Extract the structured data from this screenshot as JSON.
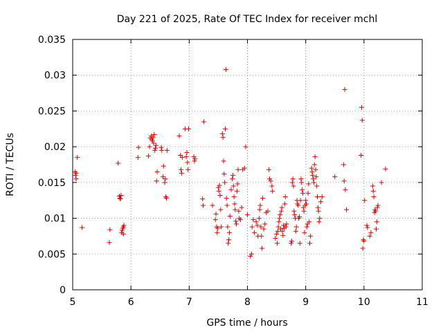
{
  "chart_data": {
    "type": "scatter",
    "title": "Day 221 of 2025, Rate Of TEC Index for receiver mchl",
    "xlabel": "GPS time / hours",
    "ylabel": "ROTI / TECUs",
    "xlim": [
      5,
      11
    ],
    "ylim": [
      0,
      0.035
    ],
    "xticks": [
      "5",
      "6",
      "7",
      "8",
      "9",
      "10",
      "11"
    ],
    "yticks": [
      "0",
      "0.005",
      "0.01",
      "0.015",
      "0.02",
      "0.025",
      "0.03",
      "0.035"
    ],
    "grid": true,
    "marker_color": "#e00000",
    "series": [
      {
        "marker": "plus",
        "points": [
          [
            5.04,
            0.0165
          ],
          [
            5.05,
            0.016
          ],
          [
            5.06,
            0.0163
          ],
          [
            5.06,
            0.0155
          ],
          [
            5.08,
            0.0185
          ],
          [
            5.16,
            0.0087
          ],
          [
            5.63,
            0.0066
          ],
          [
            5.64,
            0.0084
          ],
          [
            5.78,
            0.0177
          ],
          [
            5.8,
            0.0131
          ],
          [
            5.81,
            0.0128
          ],
          [
            5.82,
            0.0127
          ],
          [
            5.83,
            0.0132
          ],
          [
            5.84,
            0.008
          ],
          [
            5.85,
            0.0083
          ],
          [
            5.86,
            0.0086
          ],
          [
            5.87,
            0.0088
          ],
          [
            5.88,
            0.009
          ],
          [
            5.87,
            0.0078
          ],
          [
            6.12,
            0.0185
          ],
          [
            6.13,
            0.0199
          ],
          [
            6.3,
            0.0187
          ],
          [
            6.32,
            0.02
          ],
          [
            6.33,
            0.0212
          ],
          [
            6.35,
            0.0215
          ],
          [
            6.36,
            0.021
          ],
          [
            6.37,
            0.0208
          ],
          [
            6.38,
            0.0213
          ],
          [
            6.39,
            0.0205
          ],
          [
            6.4,
            0.0217
          ],
          [
            6.41,
            0.0195
          ],
          [
            6.42,
            0.0198
          ],
          [
            6.43,
            0.0202
          ],
          [
            6.44,
            0.0152
          ],
          [
            6.45,
            0.0165
          ],
          [
            6.52,
            0.0199
          ],
          [
            6.53,
            0.0195
          ],
          [
            6.55,
            0.0158
          ],
          [
            6.56,
            0.0173
          ],
          [
            6.58,
            0.015
          ],
          [
            6.59,
            0.0155
          ],
          [
            6.6,
            0.013
          ],
          [
            6.61,
            0.0128
          ],
          [
            6.62,
            0.0195
          ],
          [
            6.83,
            0.0215
          ],
          [
            6.85,
            0.0188
          ],
          [
            6.86,
            0.0168
          ],
          [
            6.87,
            0.0163
          ],
          [
            6.88,
            0.0185
          ],
          [
            6.93,
            0.0225
          ],
          [
            6.95,
            0.0186
          ],
          [
            6.96,
            0.0192
          ],
          [
            6.97,
            0.0178
          ],
          [
            6.98,
            0.0168
          ],
          [
            6.99,
            0.0225
          ],
          [
            7.08,
            0.0186
          ],
          [
            7.09,
            0.018
          ],
          [
            7.1,
            0.0183
          ],
          [
            7.23,
            0.0127
          ],
          [
            7.24,
            0.0118
          ],
          [
            7.25,
            0.0235
          ],
          [
            7.4,
            0.0118
          ],
          [
            7.45,
            0.0098
          ],
          [
            7.46,
            0.0106
          ],
          [
            7.47,
            0.0088
          ],
          [
            7.48,
            0.008
          ],
          [
            7.49,
            0.0086
          ],
          [
            7.5,
            0.0143
          ],
          [
            7.51,
            0.0138
          ],
          [
            7.52,
            0.0146
          ],
          [
            7.53,
            0.0132
          ],
          [
            7.54,
            0.0112
          ],
          [
            7.55,
            0.0088
          ],
          [
            7.57,
            0.0218
          ],
          [
            7.58,
            0.0213
          ],
          [
            7.59,
            0.018
          ],
          [
            7.6,
            0.0162
          ],
          [
            7.61,
            0.015
          ],
          [
            7.62,
            0.0225
          ],
          [
            7.63,
            0.0308
          ],
          [
            7.64,
            0.0128
          ],
          [
            7.65,
            0.0118
          ],
          [
            7.66,
            0.0088
          ],
          [
            7.67,
            0.0065
          ],
          [
            7.68,
            0.007
          ],
          [
            7.69,
            0.008
          ],
          [
            7.7,
            0.0103
          ],
          [
            7.72,
            0.014
          ],
          [
            7.74,
            0.0155
          ],
          [
            7.75,
            0.016
          ],
          [
            7.76,
            0.0145
          ],
          [
            7.77,
            0.013
          ],
          [
            7.78,
            0.012
          ],
          [
            7.79,
            0.0112
          ],
          [
            7.8,
            0.0096
          ],
          [
            7.81,
            0.0092
          ],
          [
            7.82,
            0.0138
          ],
          [
            7.83,
            0.0148
          ],
          [
            7.84,
            0.0168
          ],
          [
            7.85,
            0.011
          ],
          [
            7.86,
            0.01
          ],
          [
            7.88,
            0.0098
          ],
          [
            7.9,
            0.0115
          ],
          [
            7.92,
            0.0168
          ],
          [
            7.95,
            0.017
          ],
          [
            7.97,
            0.02
          ],
          [
            8.0,
            0.0105
          ],
          [
            8.05,
            0.0047
          ],
          [
            8.07,
            0.005
          ],
          [
            8.08,
            0.0088
          ],
          [
            8.1,
            0.0098
          ],
          [
            8.12,
            0.008
          ],
          [
            8.15,
            0.0095
          ],
          [
            8.17,
            0.009
          ],
          [
            8.18,
            0.0075
          ],
          [
            8.2,
            0.01
          ],
          [
            8.21,
            0.0112
          ],
          [
            8.22,
            0.0118
          ],
          [
            8.23,
            0.0088
          ],
          [
            8.24,
            0.0075
          ],
          [
            8.25,
            0.0058
          ],
          [
            8.26,
            0.0128
          ],
          [
            8.28,
            0.0085
          ],
          [
            8.3,
            0.0092
          ],
          [
            8.32,
            0.0108
          ],
          [
            8.35,
            0.011
          ],
          [
            8.37,
            0.0168
          ],
          [
            8.38,
            0.0155
          ],
          [
            8.4,
            0.0152
          ],
          [
            8.42,
            0.0145
          ],
          [
            8.43,
            0.0138
          ],
          [
            8.48,
            0.0072
          ],
          [
            8.5,
            0.0078
          ],
          [
            8.51,
            0.0065
          ],
          [
            8.52,
            0.0082
          ],
          [
            8.53,
            0.0088
          ],
          [
            8.54,
            0.0095
          ],
          [
            8.55,
            0.01
          ],
          [
            8.56,
            0.0105
          ],
          [
            8.57,
            0.0085
          ],
          [
            8.58,
            0.011
          ],
          [
            8.59,
            0.0115
          ],
          [
            8.6,
            0.0082
          ],
          [
            8.61,
            0.0076
          ],
          [
            8.62,
            0.009
          ],
          [
            8.63,
            0.0086
          ],
          [
            8.64,
            0.012
          ],
          [
            8.65,
            0.013
          ],
          [
            8.66,
            0.0088
          ],
          [
            8.67,
            0.0092
          ],
          [
            8.75,
            0.0065
          ],
          [
            8.76,
            0.0068
          ],
          [
            8.77,
            0.015
          ],
          [
            8.78,
            0.0155
          ],
          [
            8.79,
            0.0145
          ],
          [
            8.8,
            0.011
          ],
          [
            8.81,
            0.0105
          ],
          [
            8.82,
            0.01
          ],
          [
            8.83,
            0.0082
          ],
          [
            8.84,
            0.0088
          ],
          [
            8.85,
            0.0125
          ],
          [
            8.86,
            0.012
          ],
          [
            8.87,
            0.0118
          ],
          [
            8.88,
            0.01
          ],
          [
            8.89,
            0.0102
          ],
          [
            8.9,
            0.0065
          ],
          [
            8.91,
            0.0125
          ],
          [
            8.92,
            0.0155
          ],
          [
            8.93,
            0.015
          ],
          [
            8.94,
            0.014
          ],
          [
            8.95,
            0.0135
          ],
          [
            8.96,
            0.0115
          ],
          [
            8.97,
            0.011
          ],
          [
            8.98,
            0.008
          ],
          [
            8.99,
            0.0118
          ],
          [
            9.0,
            0.0125
          ],
          [
            9.01,
            0.012
          ],
          [
            9.02,
            0.0088
          ],
          [
            9.03,
            0.0092
          ],
          [
            9.04,
            0.0135
          ],
          [
            9.05,
            0.0148
          ],
          [
            9.06,
            0.0095
          ],
          [
            9.07,
            0.0065
          ],
          [
            9.08,
            0.0075
          ],
          [
            9.1,
            0.017
          ],
          [
            9.11,
            0.0165
          ],
          [
            9.12,
            0.016
          ],
          [
            9.13,
            0.0155
          ],
          [
            9.14,
            0.015
          ],
          [
            9.15,
            0.0175
          ],
          [
            9.16,
            0.0186
          ],
          [
            9.17,
            0.0168
          ],
          [
            9.18,
            0.0158
          ],
          [
            9.19,
            0.0145
          ],
          [
            9.2,
            0.013
          ],
          [
            9.21,
            0.0115
          ],
          [
            9.22,
            0.011
          ],
          [
            9.23,
            0.0095
          ],
          [
            9.24,
            0.01
          ],
          [
            9.26,
            0.0123
          ],
          [
            9.28,
            0.013
          ],
          [
            9.5,
            0.0158
          ],
          [
            9.65,
            0.0175
          ],
          [
            9.66,
            0.0152
          ],
          [
            9.67,
            0.028
          ],
          [
            9.68,
            0.014
          ],
          [
            9.7,
            0.0112
          ],
          [
            9.95,
            0.0188
          ],
          [
            9.96,
            0.0255
          ],
          [
            9.97,
            0.0237
          ],
          [
            9.98,
            0.0058
          ],
          [
            9.99,
            0.007
          ],
          [
            10.0,
            0.0068
          ],
          [
            10.01,
            0.0125
          ],
          [
            10.05,
            0.009
          ],
          [
            10.06,
            0.0087
          ],
          [
            10.1,
            0.0075
          ],
          [
            10.12,
            0.008
          ],
          [
            10.15,
            0.0145
          ],
          [
            10.16,
            0.0138
          ],
          [
            10.17,
            0.013
          ],
          [
            10.18,
            0.0108
          ],
          [
            10.19,
            0.0112
          ],
          [
            10.2,
            0.011
          ],
          [
            10.21,
            0.0085
          ],
          [
            10.22,
            0.0095
          ],
          [
            10.23,
            0.0115
          ],
          [
            10.24,
            0.0118
          ],
          [
            10.3,
            0.015
          ],
          [
            10.37,
            0.0169
          ]
        ]
      }
    ]
  }
}
